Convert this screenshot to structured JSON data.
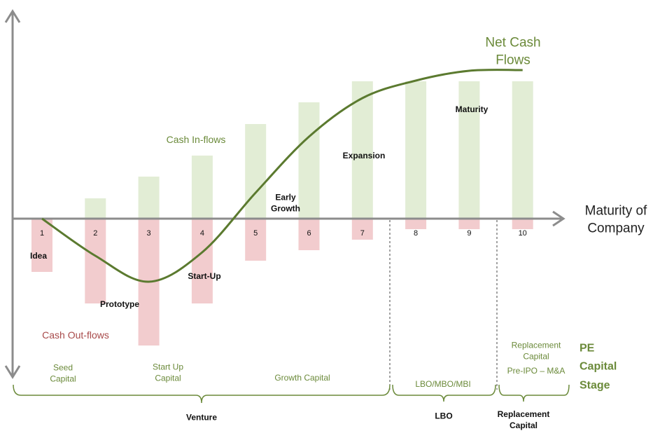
{
  "chart_data": {
    "type": "bar",
    "categories": [
      "1",
      "2",
      "3",
      "4",
      "5",
      "6",
      "7",
      "8",
      "9",
      "10"
    ],
    "series": [
      {
        "name": "Cash In-flows",
        "color": "#e2edd5",
        "values": [
          0,
          29,
          60,
          90,
          135,
          166,
          196,
          196,
          196,
          196
        ]
      },
      {
        "name": "Cash Out-flows",
        "color": "#f2ccce",
        "values": [
          -76,
          -121,
          -181,
          -121,
          -60,
          -45,
          -30,
          -15,
          -15,
          -15
        ]
      },
      {
        "name": "Net Cash Flows",
        "type": "line",
        "color": "#5b7a2f",
        "values": [
          0,
          -53,
          -90,
          -48,
          37,
          117,
          172,
          197,
          211,
          212
        ]
      }
    ],
    "ylim": [
      -200,
      300
    ],
    "x_label": "Maturity of Company",
    "stages": [
      "Idea",
      "Prototype",
      "Start-Up",
      "Early Growth",
      "Expansion",
      "Maturity"
    ],
    "pe_capital": {
      "title": "PE Capital Stage",
      "stages": [
        "Seed Capital",
        "Start Up Capital",
        "Growth Capital",
        "LBO/MBO/MBI",
        [
          "Replacement Capital",
          "Pre-IPO – M&A"
        ]
      ],
      "groups": [
        "Venture",
        "LBO",
        "Replacement Capital"
      ]
    }
  }
}
